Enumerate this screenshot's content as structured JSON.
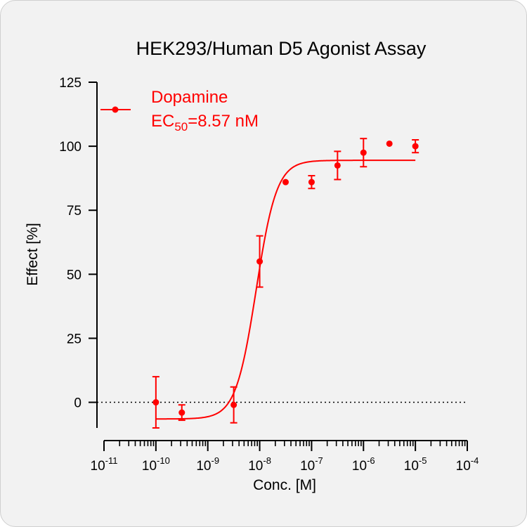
{
  "chart_data": {
    "type": "scatter",
    "title": "HEK293/Human D5 Agonist Assay",
    "xlabel": "Conc. [M]",
    "ylabel": "Effect  [%]",
    "x_scale": "log",
    "xlim": [
      1e-11,
      0.0001
    ],
    "ylim": [
      -10,
      125
    ],
    "y_ticks": [
      0,
      25,
      50,
      75,
      100,
      125
    ],
    "x_ticks": [
      {
        "base": "10",
        "exp": "-11",
        "value": 1e-11
      },
      {
        "base": "10",
        "exp": "-10",
        "value": 1e-10
      },
      {
        "base": "10",
        "exp": "-9",
        "value": 1e-09
      },
      {
        "base": "10",
        "exp": "-8",
        "value": 1e-08
      },
      {
        "base": "10",
        "exp": "-7",
        "value": 1e-07
      },
      {
        "base": "10",
        "exp": "-6",
        "value": 1e-06
      },
      {
        "base": "10",
        "exp": "-5",
        "value": 1e-05
      },
      {
        "base": "10",
        "exp": "-4",
        "value": 0.0001
      }
    ],
    "baseline": 0,
    "color": "#ff0000",
    "legend": {
      "position": "top-left",
      "name": "Dopamine",
      "ec_prefix": "EC",
      "ec_sub": "50",
      "ec_value": "=8.57 nM"
    },
    "series": [
      {
        "name": "Dopamine",
        "points": [
          {
            "x": 1e-10,
            "y": 0,
            "err": 10
          },
          {
            "x": 3.16e-10,
            "y": -4,
            "err": 3
          },
          {
            "x": 3.16e-09,
            "y": -1,
            "err": 7
          },
          {
            "x": 1e-08,
            "y": 55,
            "err": 10
          },
          {
            "x": 3.16e-08,
            "y": 86,
            "err": 0
          },
          {
            "x": 1e-07,
            "y": 86,
            "err": 2.5
          },
          {
            "x": 3.16e-07,
            "y": 92.5,
            "err": 5.5
          },
          {
            "x": 1e-06,
            "y": 97.5,
            "err": 5.5
          },
          {
            "x": 3.16e-06,
            "y": 101,
            "err": 0
          },
          {
            "x": 1e-05,
            "y": 100,
            "err": 2.5
          }
        ],
        "fit": {
          "bottom": -6.5,
          "top": 94.5,
          "ec50": 8.57e-09,
          "hill": 2.2,
          "x_range": [
            1e-10,
            1e-05
          ]
        }
      }
    ]
  }
}
